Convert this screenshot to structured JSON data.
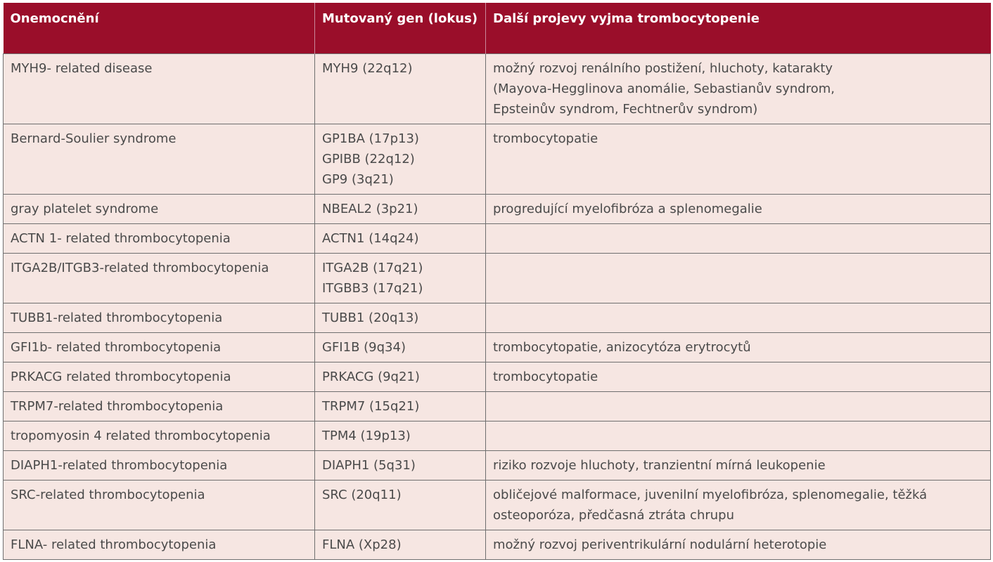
{
  "table": {
    "headers": [
      "Onemocnění",
      "Mutovaný gen (lokus)",
      "Další projevy vyjma trombocytopenie"
    ],
    "rows": [
      {
        "disease": "MYH9- related disease",
        "genes": [
          "MYH9 (22q12)"
        ],
        "manifestations": [
          "možný rozvoj renálního postižení, hluchoty, katarakty",
          "(Mayova-Hegglinova anomálie, Sebastianův syndrom,",
          "Epsteinův syndrom, Fechtnerův syndrom)"
        ]
      },
      {
        "disease": "Bernard-Soulier syndrome",
        "genes": [
          "GP1BA (17p13)",
          "GPIBB (22q12)",
          "GP9 (3q21)"
        ],
        "manifestations": [
          "trombocytopatie"
        ]
      },
      {
        "disease": "gray platelet syndrome",
        "genes": [
          "NBEAL2 (3p21)"
        ],
        "manifestations": [
          "progredující myelofibróza a splenomegalie"
        ]
      },
      {
        "disease": "ACTN 1- related thrombocytopenia",
        "genes": [
          "ACTN1 (14q24)"
        ],
        "manifestations": []
      },
      {
        "disease": "ITGA2B/ITGB3-related thrombocytopenia",
        "genes": [
          "ITGA2B (17q21)",
          "ITGBB3 (17q21)"
        ],
        "manifestations": []
      },
      {
        "disease": "TUBB1-related thrombocytopenia",
        "genes": [
          "TUBB1 (20q13)"
        ],
        "manifestations": []
      },
      {
        "disease": "GFI1b- related thrombocytopenia",
        "genes": [
          "GFI1B (9q34)"
        ],
        "manifestations": [
          "trombocytopatie,  anizocytóza erytrocytů"
        ]
      },
      {
        "disease": "PRKACG related thrombocytopenia",
        "genes": [
          "PRKACG (9q21)"
        ],
        "manifestations": [
          "trombocytopatie"
        ]
      },
      {
        "disease": "TRPM7-related thrombocytopenia",
        "genes": [
          "TRPM7 (15q21)"
        ],
        "manifestations": []
      },
      {
        "disease": "tropomyosin 4 related thrombocytopenia",
        "genes": [
          "TPM4 (19p13)"
        ],
        "manifestations": []
      },
      {
        "disease": "DIAPH1-related thrombocytopenia",
        "genes": [
          "DIAPH1 (5q31)"
        ],
        "manifestations": [
          "riziko rozvoje hluchoty, tranzientní mírná leukopenie"
        ]
      },
      {
        "disease": "SRC-related thrombocytopenia",
        "genes": [
          "SRC (20q11)"
        ],
        "manifestations": [
          "obličejové malformace, juvenilní myelofibróza, splenomegalie, těžká",
          "osteoporóza, předčasná ztráta chrupu"
        ]
      },
      {
        "disease": "FLNA- related thrombocytopenia",
        "genes": [
          "FLNA (Xp28)"
        ],
        "manifestations": [
          "možný rozvoj periventrikulární nodulární heterotopie"
        ]
      }
    ]
  },
  "colors": {
    "header_bg": "#9a0e2a",
    "header_text": "#ffffff",
    "cell_bg": "#f6e6e2",
    "cell_text": "#4a4a4a",
    "border": "#6f6f6f"
  }
}
